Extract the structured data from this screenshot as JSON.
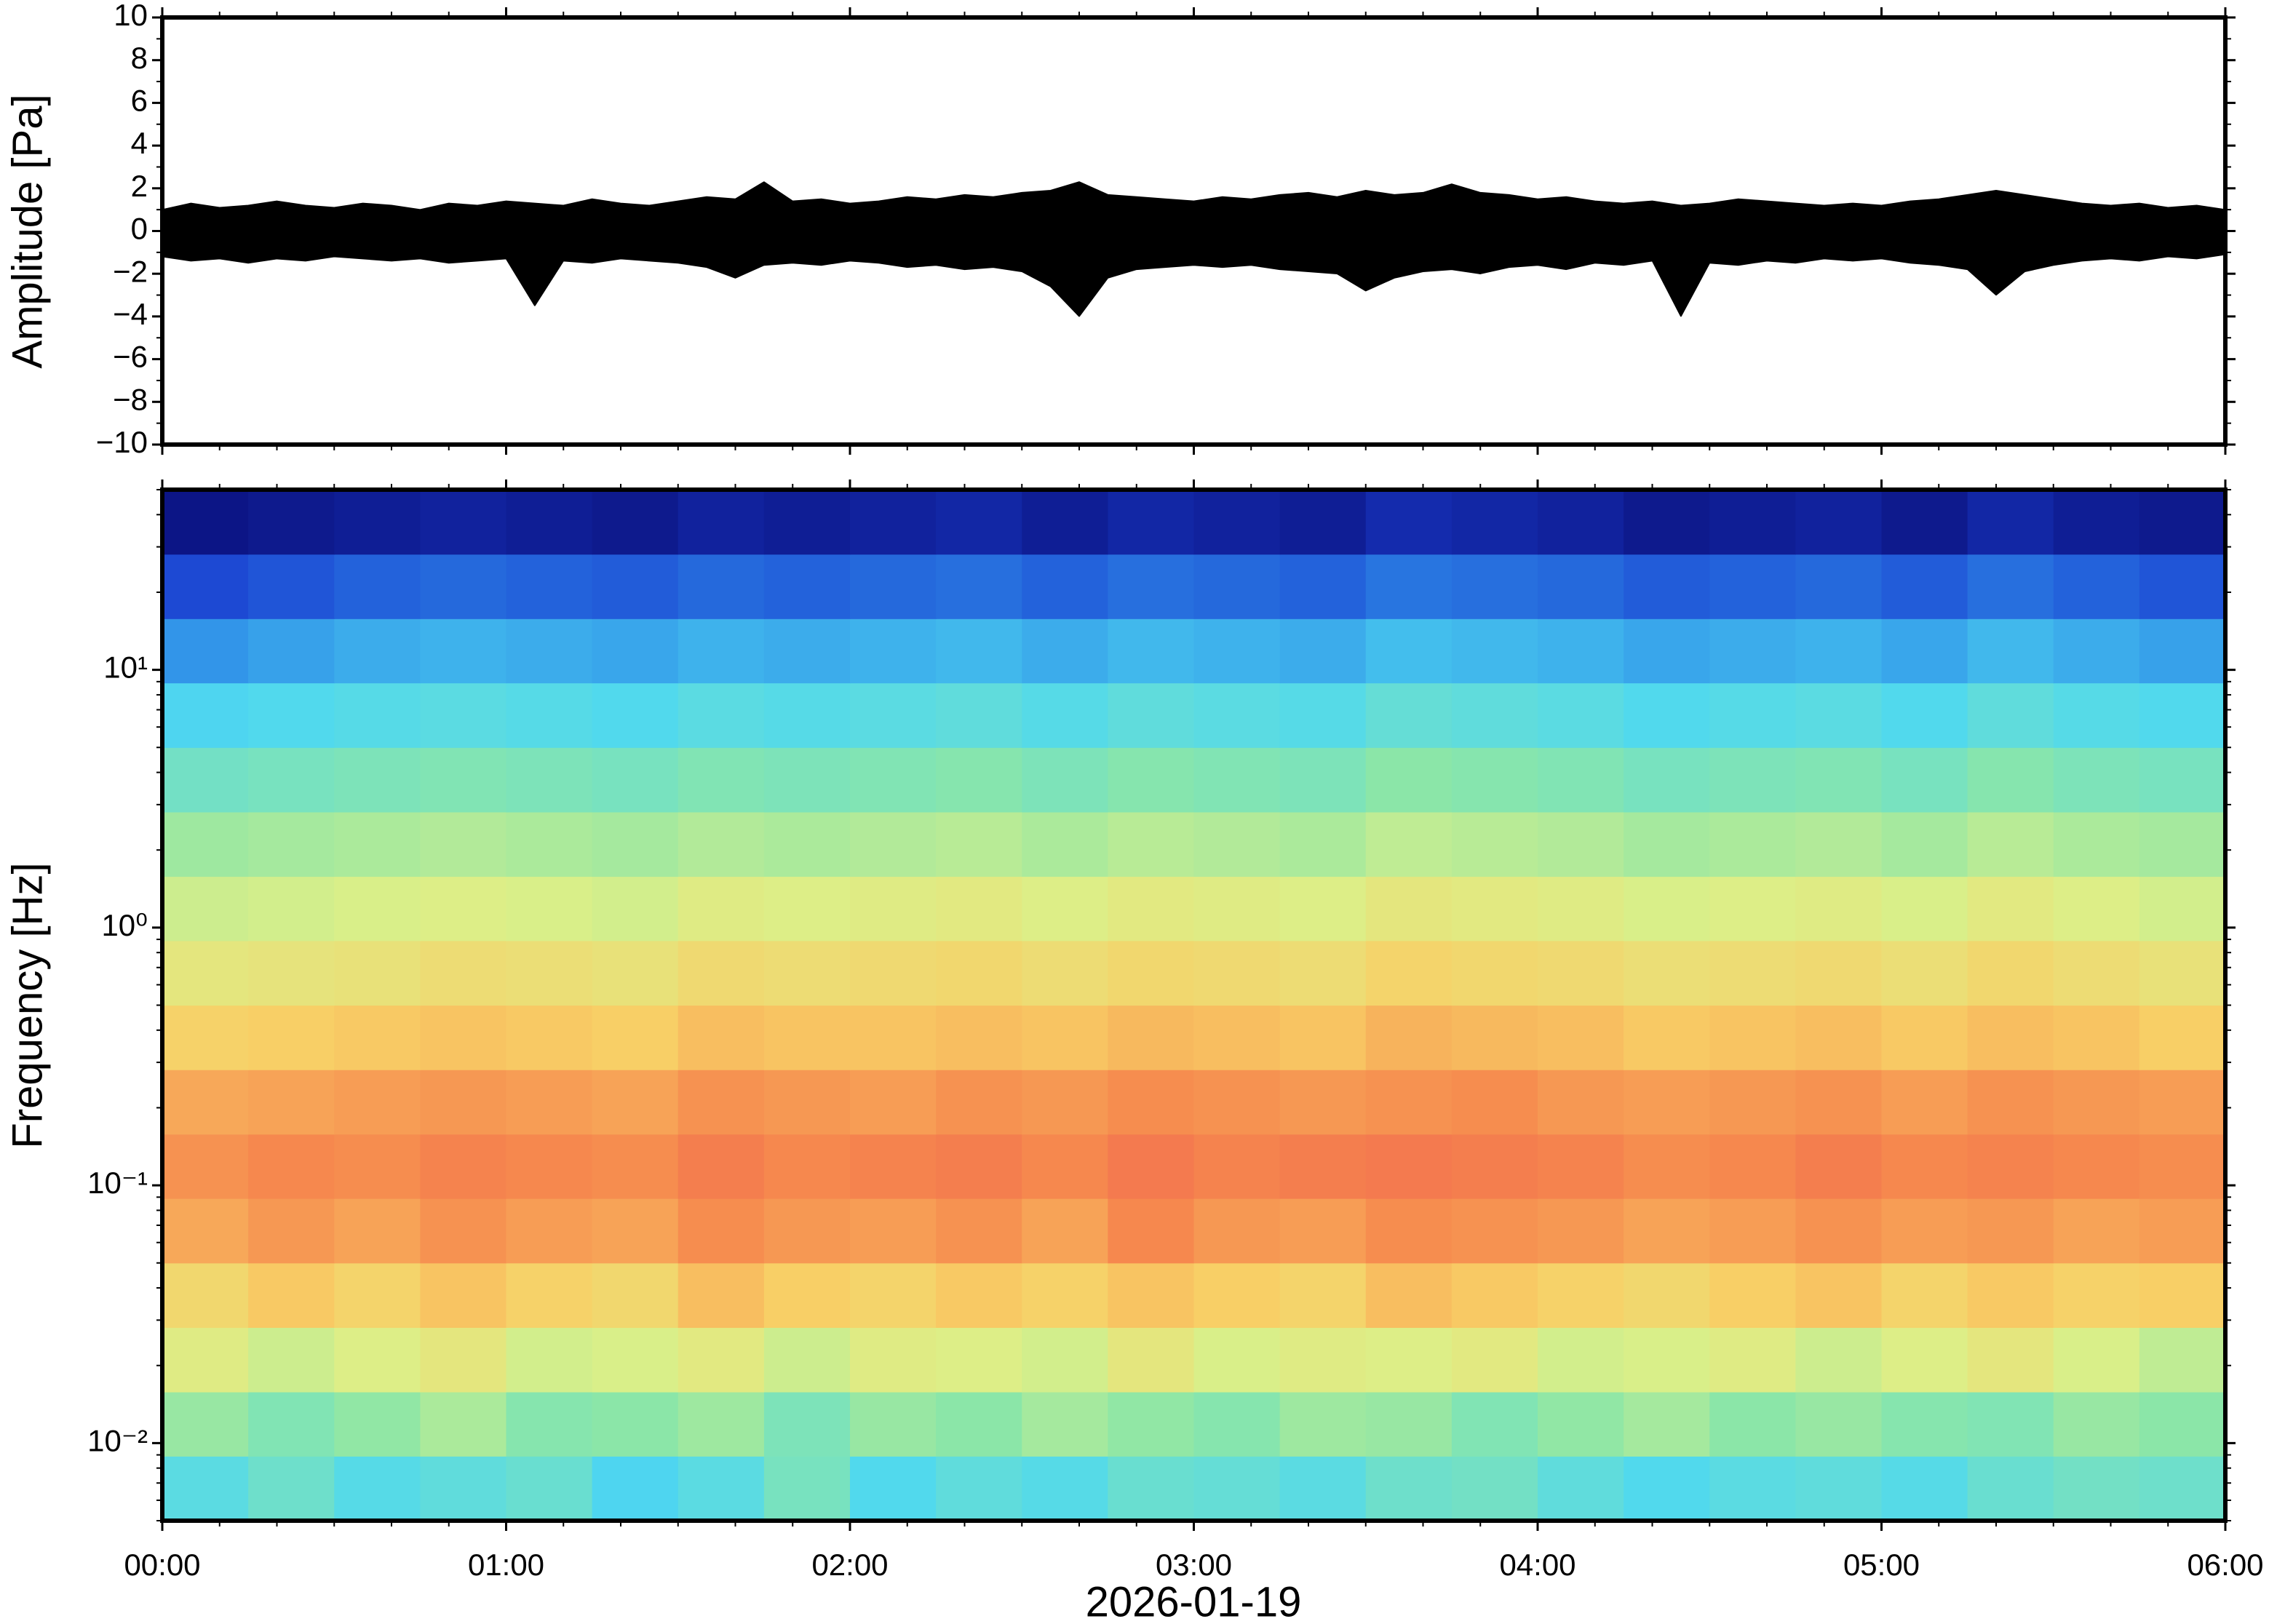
{
  "chart_data": [
    {
      "type": "area",
      "ylabel": "Amplitude [Pa]",
      "x": [
        0,
        5,
        10,
        15,
        20,
        25,
        30,
        35,
        40,
        45,
        50,
        55,
        60,
        65,
        70,
        75,
        80,
        85,
        90,
        95,
        100,
        105,
        110,
        115,
        120,
        125,
        130,
        135,
        140,
        145,
        150,
        155,
        160,
        165,
        170,
        175,
        180,
        185,
        190,
        195,
        200,
        205,
        210,
        215,
        220,
        225,
        230,
        235,
        240,
        245,
        250,
        255,
        260,
        265,
        270,
        275,
        280,
        285,
        290,
        295,
        300,
        305,
        310,
        315,
        320,
        325,
        330,
        335,
        340,
        345,
        350,
        355,
        360
      ],
      "series": [
        {
          "color": "#000000",
          "values": [
            1.0,
            1.3,
            1.1,
            1.2,
            1.4,
            1.2,
            1.1,
            1.3,
            1.2,
            1.0,
            1.3,
            1.2,
            1.4,
            1.3,
            1.2,
            1.5,
            1.3,
            1.2,
            1.4,
            1.6,
            1.5,
            2.3,
            1.4,
            1.5,
            1.3,
            1.4,
            1.6,
            1.5,
            1.7,
            1.6,
            1.8,
            1.9,
            2.3,
            1.7,
            1.6,
            1.5,
            1.4,
            1.6,
            1.5,
            1.7,
            1.8,
            1.6,
            1.9,
            1.7,
            1.8,
            2.2,
            1.8,
            1.7,
            1.5,
            1.6,
            1.4,
            1.3,
            1.4,
            1.2,
            1.3,
            1.5,
            1.4,
            1.3,
            1.2,
            1.3,
            1.2,
            1.4,
            1.5,
            1.7,
            1.9,
            1.7,
            1.5,
            1.3,
            1.2,
            1.3,
            1.1,
            1.2,
            1.0
          ]
        },
        {
          "color": "#000000",
          "values": [
            -1.2,
            -1.4,
            -1.3,
            -1.5,
            -1.3,
            -1.4,
            -1.2,
            -1.3,
            -1.4,
            -1.3,
            -1.5,
            -1.4,
            -1.3,
            -3.5,
            -1.4,
            -1.5,
            -1.3,
            -1.4,
            -1.5,
            -1.7,
            -2.2,
            -1.6,
            -1.5,
            -1.6,
            -1.4,
            -1.5,
            -1.7,
            -1.6,
            -1.8,
            -1.7,
            -1.9,
            -2.6,
            -4.0,
            -2.2,
            -1.8,
            -1.7,
            -1.6,
            -1.7,
            -1.6,
            -1.8,
            -1.9,
            -2.0,
            -2.8,
            -2.2,
            -1.9,
            -1.8,
            -2.0,
            -1.7,
            -1.6,
            -1.8,
            -1.5,
            -1.6,
            -1.4,
            -4.0,
            -1.5,
            -1.6,
            -1.4,
            -1.5,
            -1.3,
            -1.4,
            -1.3,
            -1.5,
            -1.6,
            -1.8,
            -3.0,
            -1.9,
            -1.6,
            -1.4,
            -1.3,
            -1.4,
            -1.2,
            -1.3,
            -1.1
          ]
        }
      ],
      "xlim": [
        0,
        360
      ],
      "xticks": [
        0,
        60,
        120,
        180,
        240,
        300,
        360
      ],
      "ylim": [
        -10,
        10
      ],
      "yticks": [
        {
          "value": -10,
          "label": "−10"
        },
        {
          "value": -8,
          "label": "−8"
        },
        {
          "value": -6,
          "label": "−6"
        },
        {
          "value": -4,
          "label": "−4"
        },
        {
          "value": -2,
          "label": "−2"
        },
        0,
        2,
        4,
        6,
        8,
        10
      ]
    },
    {
      "type": "heatmap",
      "ylabel": "Frequency [Hz]",
      "xlabel": "2026-01-19",
      "x": [
        0,
        15,
        30,
        45,
        60,
        75,
        90,
        105,
        120,
        135,
        150,
        165,
        180,
        195,
        210,
        225,
        240,
        255,
        270,
        285,
        300,
        315,
        330,
        345
      ],
      "y": [
        0.005,
        0.0089,
        0.0158,
        0.0281,
        0.05,
        0.089,
        0.158,
        0.281,
        0.5,
        0.89,
        1.58,
        2.81,
        5,
        8.9,
        15.8,
        28.1
      ],
      "z": [
        [
          40,
          44,
          39,
          41,
          43,
          37,
          40,
          46,
          38,
          41,
          39,
          43,
          42,
          40,
          44,
          45,
          41,
          38,
          40,
          41,
          39,
          43,
          45,
          44
        ],
        [
          52,
          48,
          51,
          55,
          49,
          50,
          53,
          47,
          52,
          50,
          54,
          51,
          49,
          53,
          52,
          48,
          51,
          54,
          50,
          52,
          49,
          48,
          52,
          50
        ],
        [
          64,
          60,
          63,
          66,
          61,
          62,
          65,
          60,
          64,
          63,
          61,
          66,
          62,
          64,
          63,
          65,
          61,
          62,
          64,
          60,
          63,
          66,
          62,
          58
        ],
        [
          72,
          76,
          73,
          77,
          74,
          72,
          78,
          75,
          73,
          76,
          74,
          77,
          75,
          73,
          78,
          76,
          74,
          72,
          75,
          77,
          73,
          76,
          74,
          75
        ],
        [
          82,
          85,
          83,
          86,
          84,
          83,
          87,
          85,
          84,
          86,
          83,
          88,
          85,
          84,
          87,
          86,
          85,
          83,
          84,
          86,
          84,
          85,
          83,
          84
        ],
        [
          86,
          88,
          87,
          89,
          88,
          87,
          90,
          88,
          89,
          90,
          88,
          91,
          89,
          90,
          91,
          90,
          89,
          87,
          88,
          90,
          88,
          89,
          88,
          87
        ],
        [
          82,
          83,
          84,
          85,
          84,
          83,
          86,
          85,
          84,
          86,
          85,
          87,
          86,
          85,
          86,
          87,
          85,
          84,
          85,
          86,
          84,
          86,
          85,
          84
        ],
        [
          74,
          75,
          76,
          77,
          76,
          75,
          78,
          77,
          77,
          78,
          77,
          79,
          78,
          77,
          80,
          79,
          78,
          76,
          77,
          78,
          76,
          78,
          77,
          75
        ],
        [
          66,
          67,
          68,
          70,
          69,
          68,
          71,
          70,
          71,
          72,
          70,
          72,
          71,
          70,
          73,
          72,
          71,
          69,
          70,
          71,
          69,
          72,
          70,
          68
        ],
        [
          60,
          61,
          62,
          63,
          62,
          61,
          64,
          63,
          64,
          65,
          63,
          65,
          64,
          63,
          66,
          65,
          64,
          62,
          63,
          64,
          62,
          65,
          63,
          61
        ],
        [
          53,
          54,
          55,
          56,
          55,
          54,
          56,
          55,
          56,
          57,
          55,
          57,
          56,
          55,
          58,
          57,
          56,
          54,
          55,
          56,
          54,
          57,
          55,
          54
        ],
        [
          45,
          46,
          47,
          48,
          47,
          46,
          48,
          47,
          48,
          49,
          47,
          49,
          48,
          47,
          50,
          49,
          48,
          46,
          47,
          48,
          46,
          49,
          47,
          46
        ],
        [
          37,
          38,
          39,
          40,
          39,
          38,
          40,
          39,
          40,
          41,
          39,
          41,
          40,
          39,
          42,
          41,
          40,
          38,
          39,
          40,
          38,
          41,
          39,
          38
        ],
        [
          26,
          28,
          30,
          31,
          30,
          29,
          31,
          30,
          31,
          32,
          30,
          32,
          31,
          30,
          33,
          32,
          31,
          29,
          30,
          31,
          29,
          32,
          30,
          28
        ],
        [
          14,
          16,
          18,
          19,
          18,
          17,
          19,
          18,
          19,
          20,
          18,
          20,
          19,
          18,
          21,
          20,
          19,
          17,
          18,
          19,
          17,
          20,
          18,
          16
        ],
        [
          3,
          4,
          5,
          6,
          5,
          4,
          6,
          5,
          6,
          7,
          5,
          7,
          6,
          5,
          8,
          7,
          6,
          4,
          5,
          6,
          4,
          7,
          5,
          4
        ]
      ],
      "zlim": [
        0,
        100
      ],
      "colormap": [
        "#08086e",
        "#1a3fd0",
        "#2f8fe8",
        "#4fd8f0",
        "#8be6a8",
        "#dcef88",
        "#f8cf66",
        "#f68a4e",
        "#ee5050"
      ],
      "xlim": [
        0,
        360
      ],
      "xticks": [
        {
          "value": 0,
          "label": "00:00"
        },
        {
          "value": 60,
          "label": "01:00"
        },
        {
          "value": 120,
          "label": "02:00"
        },
        {
          "value": 180,
          "label": "03:00"
        },
        {
          "value": 240,
          "label": "04:00"
        },
        {
          "value": 300,
          "label": "05:00"
        },
        {
          "value": 360,
          "label": "06:00"
        }
      ],
      "ylim": [
        0.005,
        50
      ],
      "log_y": true,
      "yticks": [
        {
          "value": 0.01,
          "label": "10⁻²"
        },
        {
          "value": 0.1,
          "label": "10⁻¹"
        },
        {
          "value": 1,
          "label": "10⁰"
        },
        {
          "value": 10,
          "label": "10¹"
        }
      ]
    }
  ]
}
